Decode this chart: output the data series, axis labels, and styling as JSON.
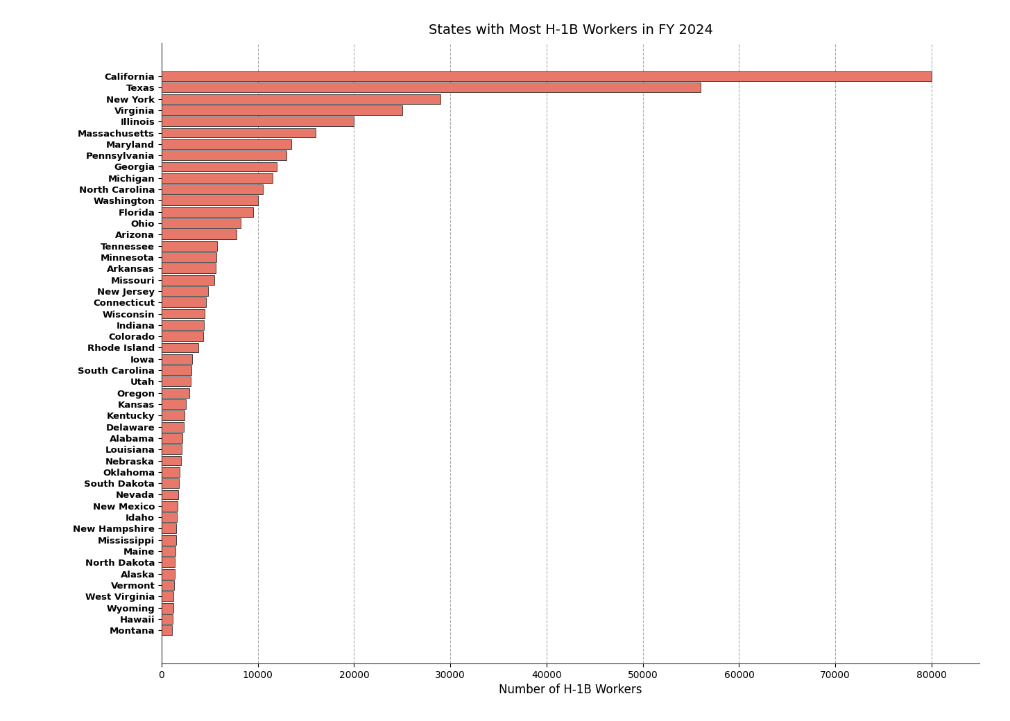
{
  "title": "States with Most H-1B Workers in FY 2024",
  "xlabel": "Number of H-1B Workers",
  "bar_color": "#e8796a",
  "bar_edgecolor": "#2a2a2a",
  "background_color": "#ffffff",
  "grid_color": "#aaaaaa",
  "states": [
    "California",
    "Texas",
    "New York",
    "Virginia",
    "Illinois",
    "Massachusetts",
    "Maryland",
    "Pennsylvania",
    "Georgia",
    "Michigan",
    "North Carolina",
    "Washington",
    "Florida",
    "Ohio",
    "Arizona",
    "Tennessee",
    "Minnesota",
    "Arkansas",
    "Missouri",
    "New Jersey",
    "Connecticut",
    "Wisconsin",
    "Indiana",
    "Colorado",
    "Rhode Island",
    "Iowa",
    "South Carolina",
    "Utah",
    "Oregon",
    "Kansas",
    "Kentucky",
    "Delaware",
    "Alabama",
    "Louisiana",
    "Nebraska",
    "Oklahoma",
    "South Dakota",
    "Nevada",
    "New Mexico",
    "Idaho",
    "New Hampshire",
    "Mississippi",
    "Maine",
    "North Dakota",
    "Alaska",
    "Vermont",
    "West Virginia",
    "Wyoming",
    "Hawaii",
    "Montana"
  ],
  "values": [
    80000,
    56000,
    29000,
    25000,
    20000,
    16000,
    13500,
    13000,
    12000,
    11500,
    10500,
    10000,
    9500,
    8200,
    7800,
    5800,
    5700,
    5600,
    5500,
    4800,
    4600,
    4500,
    4400,
    4300,
    3800,
    3200,
    3100,
    3000,
    2900,
    2500,
    2400,
    2300,
    2200,
    2100,
    2000,
    1900,
    1800,
    1700,
    1650,
    1600,
    1550,
    1500,
    1450,
    1400,
    1350,
    1300,
    1250,
    1200,
    1150,
    1100
  ],
  "xlim": [
    0,
    85000
  ],
  "xticks": [
    0,
    10000,
    20000,
    30000,
    40000,
    50000,
    60000,
    70000,
    80000
  ],
  "title_fontsize": 14,
  "label_fontsize": 12,
  "tick_fontsize": 9.5,
  "ytick_fontsize": 9.5
}
